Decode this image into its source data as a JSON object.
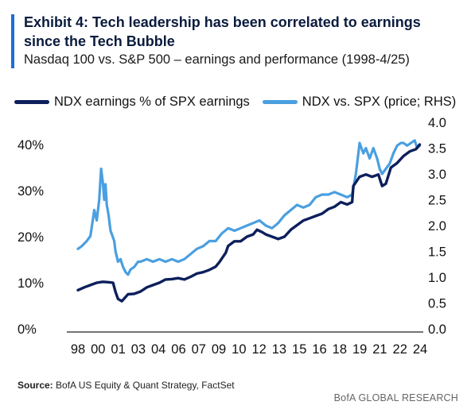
{
  "header": {
    "title": "Exhibit 4: Tech leadership has been correlated to earnings since the Tech Bubble",
    "subtitle": "Nasdaq 100 vs. S&P 500 – earnings and performance (1998-4/25)"
  },
  "footer": {
    "source_label": "Source:",
    "source_text": " BofA US Equity & Quant Strategy, FactSet",
    "brand": "BofA GLOBAL RESEARCH"
  },
  "colors": {
    "accent": "#1f6fd0",
    "earnings": "#0d1f5c",
    "price": "#4a9fe0"
  },
  "chart_data": {
    "type": "line",
    "title": "",
    "legend_position": "top",
    "x_ticks": [
      "98",
      "00",
      "01",
      "03",
      "04",
      "06",
      "07",
      "09",
      "10",
      "12",
      "13",
      "15",
      "16",
      "18",
      "19",
      "21",
      "22",
      "24"
    ],
    "x_range": [
      1998,
      2025.33
    ],
    "y_left": {
      "label": "",
      "range": [
        0,
        0.4
      ],
      "ticks": [
        "0%",
        "10%",
        "20%",
        "30%",
        "40%"
      ],
      "tick_values": [
        0,
        0.1,
        0.2,
        0.3,
        0.4
      ]
    },
    "y_right": {
      "label": "",
      "range": [
        0.0,
        4.0
      ],
      "ticks": [
        "0.0",
        "0.5",
        "1.0",
        "1.5",
        "2.0",
        "2.5",
        "3.0",
        "3.5",
        "4.0"
      ],
      "tick_values": [
        0,
        0.5,
        1,
        1.5,
        2,
        2.5,
        3,
        3.5,
        4
      ]
    },
    "grid": false,
    "series": [
      {
        "name": "NDX earnings % of SPX earnings",
        "axis": "left",
        "x": [
          1998.0,
          1998.5,
          1999.0,
          1999.5,
          2000.0,
          2000.5,
          2000.8,
          2001.0,
          2001.2,
          2001.5,
          2002.0,
          2002.5,
          2003.0,
          2003.5,
          2004.0,
          2004.5,
          2005.0,
          2005.5,
          2006.0,
          2006.5,
          2007.0,
          2007.5,
          2008.0,
          2008.5,
          2009.0,
          2009.3,
          2009.8,
          2010.0,
          2010.5,
          2011.0,
          2011.5,
          2012.0,
          2012.3,
          2012.7,
          2013.0,
          2013.5,
          2014.0,
          2014.5,
          2015.0,
          2015.5,
          2016.0,
          2016.5,
          2017.0,
          2017.5,
          2018.0,
          2018.5,
          2019.0,
          2019.5,
          2019.9,
          2020.0,
          2020.5,
          2021.0,
          2021.5,
          2022.0,
          2022.3,
          2022.6,
          2023.0,
          2023.5,
          2024.0,
          2024.5,
          2025.0,
          2025.3
        ],
        "y": [
          0.084,
          0.09,
          0.095,
          0.1,
          0.102,
          0.101,
          0.1,
          0.08,
          0.065,
          0.06,
          0.075,
          0.076,
          0.081,
          0.09,
          0.095,
          0.1,
          0.107,
          0.108,
          0.11,
          0.107,
          0.113,
          0.12,
          0.123,
          0.128,
          0.135,
          0.145,
          0.165,
          0.18,
          0.19,
          0.19,
          0.2,
          0.205,
          0.215,
          0.21,
          0.205,
          0.2,
          0.195,
          0.2,
          0.215,
          0.225,
          0.235,
          0.24,
          0.245,
          0.25,
          0.26,
          0.265,
          0.275,
          0.27,
          0.275,
          0.31,
          0.33,
          0.335,
          0.33,
          0.335,
          0.31,
          0.315,
          0.35,
          0.36,
          0.375,
          0.385,
          0.39,
          0.4
        ]
      },
      {
        "name": "NDX vs. SPX (price; RHS)",
        "axis": "right",
        "x": [
          1998.0,
          1998.3,
          1998.7,
          1999.0,
          1999.3,
          1999.5,
          1999.7,
          1999.85,
          2000.0,
          2000.1,
          2000.2,
          2000.3,
          2000.45,
          2000.6,
          2000.75,
          2000.9,
          2001.0,
          2001.2,
          2001.4,
          2001.6,
          2001.8,
          2002.0,
          2002.2,
          2002.5,
          2002.8,
          2003.0,
          2003.5,
          2004.0,
          2004.5,
          2005.0,
          2005.5,
          2006.0,
          2006.5,
          2007.0,
          2007.5,
          2008.0,
          2008.5,
          2009.0,
          2009.5,
          2010.0,
          2010.5,
          2011.0,
          2011.5,
          2012.0,
          2012.5,
          2013.0,
          2013.5,
          2014.0,
          2014.5,
          2015.0,
          2015.5,
          2016.0,
          2016.5,
          2017.0,
          2017.5,
          2018.0,
          2018.5,
          2019.0,
          2019.5,
          2019.9,
          2020.2,
          2020.5,
          2020.8,
          2021.0,
          2021.3,
          2021.6,
          2021.9,
          2022.1,
          2022.3,
          2022.6,
          2022.9,
          2023.2,
          2023.5,
          2023.8,
          2024.0,
          2024.3,
          2024.6,
          2024.9,
          2025.1,
          2025.3
        ],
        "y": [
          1.55,
          1.6,
          1.7,
          1.8,
          2.3,
          2.1,
          2.5,
          3.1,
          2.8,
          2.5,
          2.8,
          2.4,
          2.2,
          1.9,
          1.8,
          1.7,
          1.5,
          1.3,
          1.35,
          1.2,
          1.1,
          1.05,
          1.15,
          1.2,
          1.3,
          1.3,
          1.35,
          1.3,
          1.35,
          1.3,
          1.35,
          1.3,
          1.35,
          1.45,
          1.55,
          1.6,
          1.7,
          1.7,
          1.85,
          1.95,
          1.9,
          1.95,
          2.0,
          2.05,
          2.1,
          2.0,
          1.95,
          2.05,
          2.2,
          2.3,
          2.4,
          2.35,
          2.4,
          2.55,
          2.6,
          2.6,
          2.65,
          2.6,
          2.55,
          2.6,
          3.0,
          3.6,
          3.4,
          3.5,
          3.3,
          3.5,
          3.3,
          3.1,
          3.0,
          3.1,
          3.2,
          3.4,
          3.55,
          3.6,
          3.6,
          3.55,
          3.6,
          3.65,
          3.5,
          3.55
        ]
      }
    ]
  }
}
